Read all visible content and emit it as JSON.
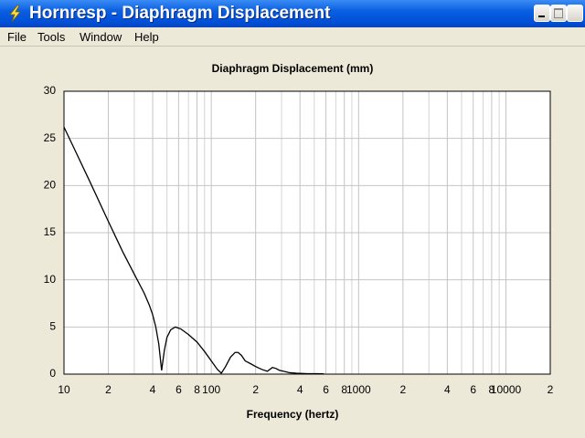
{
  "window": {
    "title": "Hornresp - Diaphragm Displacement"
  },
  "menu": [
    "File",
    "Tools",
    "Window",
    "Help"
  ],
  "chart_data": {
    "type": "line",
    "title": "Diaphragm Displacement (mm)",
    "x_label": "Frequency (hertz)",
    "x_scale": "log",
    "xlim": [
      10,
      20000
    ],
    "ylim": [
      0,
      30
    ],
    "xticks": [
      10,
      {
        "value": 20,
        "label": "2"
      },
      {
        "value": 40,
        "label": "4"
      },
      {
        "value": 60,
        "label": "6"
      },
      {
        "value": 80,
        "label": "8"
      },
      100,
      {
        "value": 200,
        "label": "2"
      },
      {
        "value": 400,
        "label": "4"
      },
      {
        "value": 600,
        "label": "6"
      },
      {
        "value": 800,
        "label": "8"
      },
      1000,
      {
        "value": 2000,
        "label": "2"
      },
      {
        "value": 4000,
        "label": "4"
      },
      {
        "value": 6000,
        "label": "6"
      },
      {
        "value": 8000,
        "label": "8"
      },
      10000,
      {
        "value": 20000,
        "label": "2"
      }
    ],
    "x_minor_grid": [
      30,
      50,
      70,
      90,
      300,
      500,
      700,
      900,
      3000,
      5000,
      7000,
      9000
    ],
    "yticks": [
      0,
      5,
      10,
      15,
      20,
      25,
      30
    ],
    "grid": true,
    "x": [
      10,
      12,
      15,
      20,
      25,
      30,
      35,
      38,
      40,
      42,
      44,
      46,
      48,
      50,
      53,
      57,
      62,
      70,
      80,
      90,
      100,
      110,
      117,
      125,
      135,
      145,
      152,
      160,
      170,
      185,
      200,
      220,
      240,
      260,
      275,
      290,
      310,
      340,
      380,
      450,
      520,
      580
    ],
    "series": [
      {
        "color": "#000000",
        "values": [
          26.2,
          23.6,
          20.4,
          16.2,
          13.0,
          10.6,
          8.6,
          7.3,
          6.3,
          5.0,
          3.2,
          0.4,
          2.5,
          3.9,
          4.7,
          5.0,
          4.8,
          4.2,
          3.4,
          2.4,
          1.4,
          0.5,
          0.1,
          0.8,
          1.8,
          2.3,
          2.3,
          2.0,
          1.4,
          1.1,
          0.8,
          0.5,
          0.3,
          0.7,
          0.6,
          0.4,
          0.3,
          0.15,
          0.1,
          0.05,
          0.05,
          0.03
        ]
      }
    ]
  }
}
